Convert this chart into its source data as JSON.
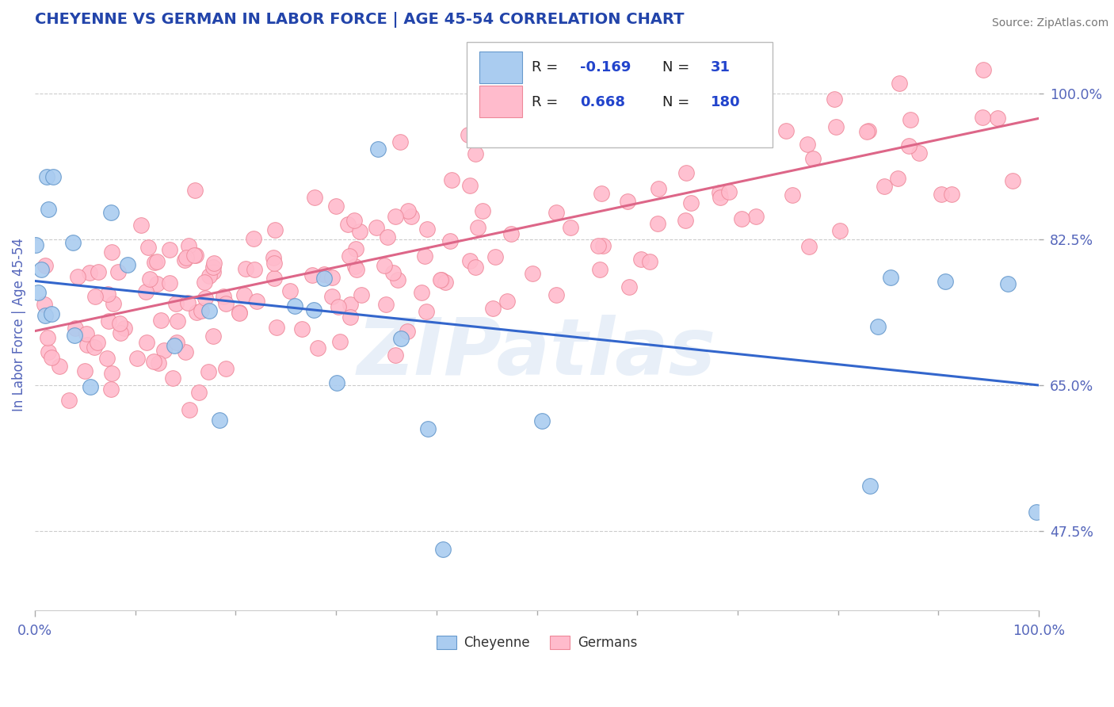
{
  "title": "CHEYENNE VS GERMAN IN LABOR FORCE | AGE 45-54 CORRELATION CHART",
  "source_text": "Source: ZipAtlas.com",
  "ylabel": "In Labor Force | Age 45-54",
  "xlim": [
    0.0,
    1.0
  ],
  "ylim": [
    0.38,
    1.065
  ],
  "yticks": [
    0.475,
    0.65,
    0.825,
    1.0
  ],
  "ytick_labels": [
    "47.5%",
    "65.0%",
    "82.5%",
    "100.0%"
  ],
  "xtick_labels": [
    "0.0%",
    "100.0%"
  ],
  "cheyenne_color": "#aaccf0",
  "cheyenne_edge_color": "#6699cc",
  "cheyenne_line_color": "#3366cc",
  "german_color": "#ffbbcc",
  "german_edge_color": "#ee8899",
  "german_line_color": "#dd6688",
  "R_cheyenne": -0.169,
  "N_cheyenne": 31,
  "R_german": 0.668,
  "N_german": 180,
  "watermark_text": "ZIPatlas",
  "title_color": "#2244aa",
  "title_fontsize": 14,
  "axis_label_color": "#5566bb",
  "tick_label_color": "#5566bb",
  "source_color": "#777777",
  "marker_size": 200,
  "blue_line_start_x": 0.0,
  "blue_line_start_y": 0.775,
  "blue_line_end_x": 1.0,
  "blue_line_end_y": 0.65,
  "pink_line_start_x": 0.0,
  "pink_line_start_y": 0.715,
  "pink_line_end_x": 1.0,
  "pink_line_end_y": 0.97,
  "legend_R_color": "#2244cc",
  "legend_box_color": "#dddddd",
  "cheyenne_seed": 101,
  "german_seed": 202
}
